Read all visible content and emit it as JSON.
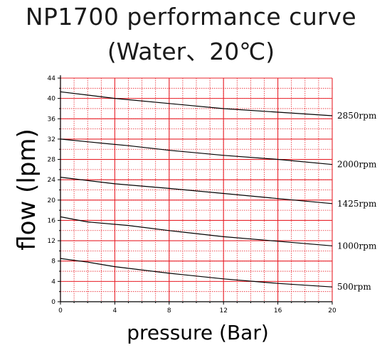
{
  "title_line1": "NP1700 performance curve",
  "title_line2": "(Water、20℃)",
  "chart_data": {
    "type": "line",
    "xlabel": "pressure (Bar)",
    "ylabel": "flow (lpm)",
    "xlim": [
      0,
      20
    ],
    "ylim": [
      0,
      44
    ],
    "x_ticks": [
      0,
      4,
      8,
      12,
      16,
      20
    ],
    "y_ticks": [
      0,
      4,
      8,
      12,
      16,
      20,
      24,
      28,
      32,
      36,
      40,
      44
    ],
    "grid": true,
    "grid_color": "#e8232b",
    "line_color": "#000000",
    "series": [
      {
        "name": "2850rpm",
        "x": [
          0,
          4,
          8,
          12,
          16,
          20
        ],
        "y": [
          41.3,
          40.0,
          39.0,
          38.0,
          37.3,
          36.6
        ]
      },
      {
        "name": "2000rpm",
        "x": [
          0,
          3,
          5,
          8,
          12,
          16,
          20
        ],
        "y": [
          32.0,
          31.2,
          30.7,
          29.8,
          28.8,
          28.0,
          27.0
        ]
      },
      {
        "name": "1425rpm",
        "x": [
          0,
          4,
          8,
          12,
          16,
          20
        ],
        "y": [
          24.5,
          23.2,
          22.3,
          21.3,
          20.3,
          19.3
        ]
      },
      {
        "name": "1000rpm",
        "x": [
          0,
          2,
          5,
          8,
          12,
          16,
          20
        ],
        "y": [
          16.7,
          15.7,
          15.0,
          14.0,
          12.8,
          11.9,
          11.0
        ]
      },
      {
        "name": "500rpm",
        "x": [
          0,
          2,
          4,
          8,
          12,
          16,
          20
        ],
        "y": [
          8.5,
          7.8,
          6.9,
          5.6,
          4.5,
          3.6,
          2.9
        ]
      }
    ]
  }
}
